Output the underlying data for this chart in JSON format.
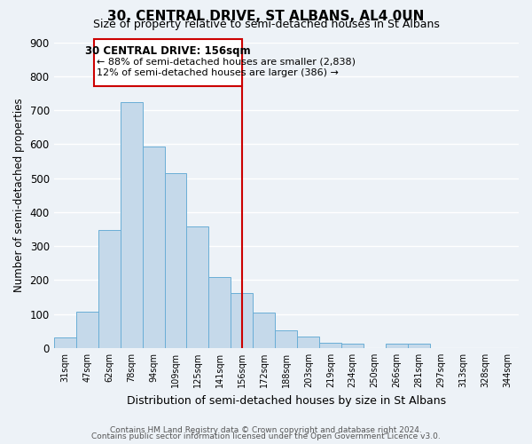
{
  "title": "30, CENTRAL DRIVE, ST ALBANS, AL4 0UN",
  "subtitle": "Size of property relative to semi-detached houses in St Albans",
  "xlabel": "Distribution of semi-detached houses by size in St Albans",
  "ylabel": "Number of semi-detached properties",
  "bar_labels": [
    "31sqm",
    "47sqm",
    "62sqm",
    "78sqm",
    "94sqm",
    "109sqm",
    "125sqm",
    "141sqm",
    "156sqm",
    "172sqm",
    "188sqm",
    "203sqm",
    "219sqm",
    "234sqm",
    "250sqm",
    "266sqm",
    "281sqm",
    "297sqm",
    "313sqm",
    "328sqm",
    "344sqm"
  ],
  "bar_values": [
    30,
    108,
    348,
    724,
    594,
    514,
    359,
    210,
    163,
    105,
    52,
    33,
    15,
    12,
    0,
    12,
    12,
    0,
    0,
    0,
    0
  ],
  "bar_color": "#c5d9ea",
  "bar_edge_color": "#6aaed6",
  "vline_x_index": 8,
  "vline_color": "#cc0000",
  "annotation_title": "30 CENTRAL DRIVE: 156sqm",
  "annotation_line1": "← 88% of semi-detached houses are smaller (2,838)",
  "annotation_line2": "12% of semi-detached houses are larger (386) →",
  "annotation_box_color": "#ffffff",
  "annotation_box_edge": "#cc0000",
  "ylim": [
    0,
    900
  ],
  "yticks": [
    0,
    100,
    200,
    300,
    400,
    500,
    600,
    700,
    800,
    900
  ],
  "footer_line1": "Contains HM Land Registry data © Crown copyright and database right 2024.",
  "footer_line2": "Contains public sector information licensed under the Open Government Licence v3.0.",
  "background_color": "#edf2f7",
  "grid_color": "#ffffff"
}
